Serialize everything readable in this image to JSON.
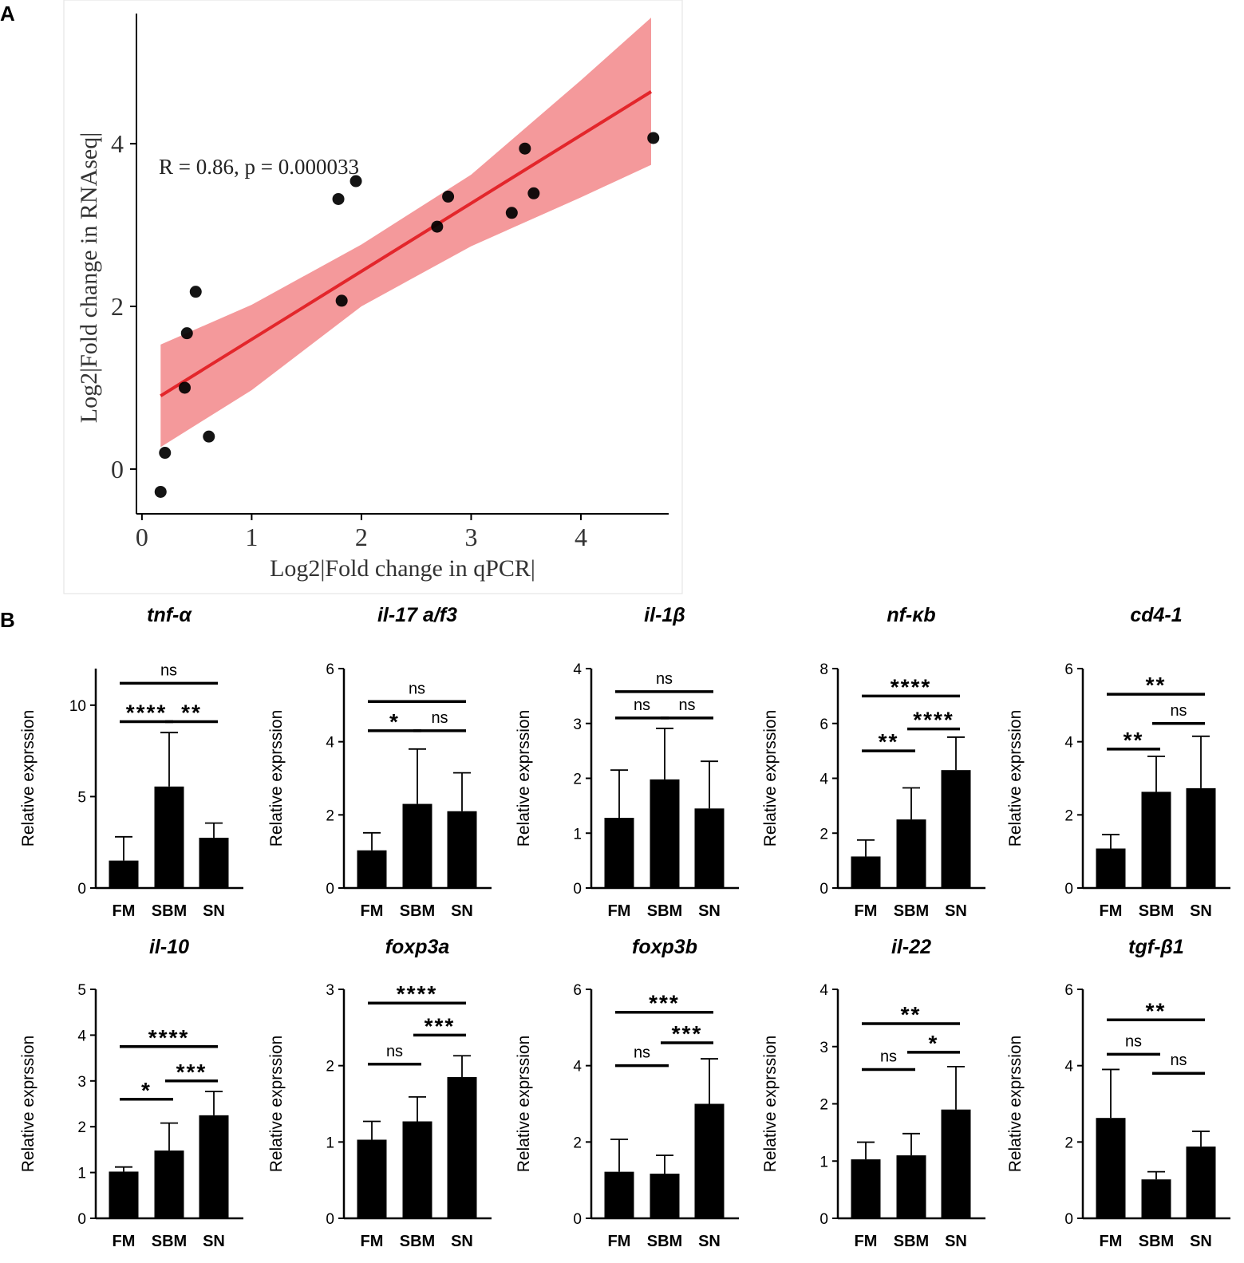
{
  "panels": {
    "a_label": "A",
    "b_label": "B"
  },
  "colors": {
    "band": "#f4999b",
    "line": "#e3262b",
    "point": "#000000",
    "bar": "#000000"
  },
  "chart_data": [
    {
      "type": "scatter",
      "panel": "A",
      "title": "",
      "xlabel": "Log2|Fold change in qPCR|",
      "ylabel": "Log2|Fold change in RNAseq|",
      "annotation": "R = 0.86, p = 0.000033",
      "xlim": [
        -0.05,
        4.8
      ],
      "ylim": [
        -0.55,
        5.6
      ],
      "xticks": [
        "0",
        "1",
        "2",
        "3",
        "4"
      ],
      "yticks": [
        "0",
        "2",
        "4"
      ],
      "points": [
        {
          "x": 0.17,
          "y": -0.28
        },
        {
          "x": 0.21,
          "y": 0.2
        },
        {
          "x": 0.39,
          "y": 1.0
        },
        {
          "x": 0.41,
          "y": 1.67
        },
        {
          "x": 0.49,
          "y": 2.18
        },
        {
          "x": 0.61,
          "y": 0.4
        },
        {
          "x": 1.79,
          "y": 3.32
        },
        {
          "x": 1.82,
          "y": 2.07
        },
        {
          "x": 1.95,
          "y": 3.54
        },
        {
          "x": 2.69,
          "y": 2.98
        },
        {
          "x": 2.79,
          "y": 3.35
        },
        {
          "x": 3.37,
          "y": 3.15
        },
        {
          "x": 3.49,
          "y": 3.94
        },
        {
          "x": 3.57,
          "y": 3.39
        },
        {
          "x": 4.66,
          "y": 4.07
        }
      ],
      "fit": {
        "x": [
          0.17,
          4.64
        ],
        "y": [
          0.9,
          4.64
        ]
      },
      "band": {
        "x": [
          0.17,
          1.0,
          2.0,
          3.0,
          4.0,
          4.64
        ],
        "upper": [
          1.53,
          2.02,
          2.76,
          3.62,
          4.78,
          5.55
        ],
        "lower": [
          0.27,
          0.97,
          2.0,
          2.74,
          3.34,
          3.74
        ]
      }
    },
    {
      "type": "bar",
      "panel": "B",
      "title": "tnf-α",
      "ylabel": "Relative exprssion",
      "categories": [
        "FM",
        "SBM",
        "SN"
      ],
      "values": [
        1.5,
        5.55,
        2.75
      ],
      "errors": [
        1.3,
        2.95,
        0.8
      ],
      "ylim": [
        0,
        12
      ],
      "yticks": [
        "0",
        "5",
        "10"
      ],
      "significance": [
        {
          "from": 0,
          "to": 2,
          "label": "ns",
          "y": 11.2
        },
        {
          "from": 0,
          "to": 1,
          "label": "****",
          "y": 9.1
        },
        {
          "from": 1,
          "to": 2,
          "label": "**",
          "y": 9.1
        }
      ]
    },
    {
      "type": "bar",
      "panel": "B",
      "title": "il-17 a/f3",
      "ylabel": "Relative exprssion",
      "categories": [
        "FM",
        "SBM",
        "SN"
      ],
      "values": [
        1.03,
        2.3,
        2.1
      ],
      "errors": [
        0.48,
        1.5,
        1.05
      ],
      "ylim": [
        0,
        6
      ],
      "yticks": [
        "0",
        "2",
        "4",
        "6"
      ],
      "significance": [
        {
          "from": 0,
          "to": 2,
          "label": "ns",
          "y": 5.1
        },
        {
          "from": 0,
          "to": 1,
          "label": "*",
          "y": 4.3
        },
        {
          "from": 1,
          "to": 2,
          "label": "ns",
          "y": 4.3
        }
      ]
    },
    {
      "type": "bar",
      "panel": "B",
      "title": "il-1β",
      "ylabel": "Relative exprssion",
      "categories": [
        "FM",
        "SBM",
        "SN"
      ],
      "values": [
        1.28,
        1.98,
        1.45
      ],
      "errors": [
        0.87,
        0.93,
        0.86
      ],
      "ylim": [
        0,
        4
      ],
      "yticks": [
        "0",
        "1",
        "2",
        "3",
        "4"
      ],
      "significance": [
        {
          "from": 0,
          "to": 2,
          "label": "ns",
          "y": 3.58
        },
        {
          "from": 0,
          "to": 1,
          "label": "ns",
          "y": 3.1
        },
        {
          "from": 1,
          "to": 2,
          "label": "ns",
          "y": 3.1
        }
      ]
    },
    {
      "type": "bar",
      "panel": "B",
      "title": "nf-κb",
      "ylabel": "Relative exprssion",
      "categories": [
        "FM",
        "SBM",
        "SN"
      ],
      "values": [
        1.15,
        2.5,
        4.3
      ],
      "errors": [
        0.6,
        1.15,
        1.2
      ],
      "ylim": [
        0,
        8
      ],
      "yticks": [
        "0",
        "2",
        "4",
        "6",
        "8"
      ],
      "significance": [
        {
          "from": 0,
          "to": 2,
          "label": "****",
          "y": 7.0
        },
        {
          "from": 0,
          "to": 1,
          "label": "**",
          "y": 5.0
        },
        {
          "from": 1,
          "to": 2,
          "label": "****",
          "y": 5.8
        }
      ]
    },
    {
      "type": "bar",
      "panel": "B",
      "title": "cd4-1",
      "ylabel": "Relative exprssion",
      "categories": [
        "FM",
        "SBM",
        "SN"
      ],
      "values": [
        1.08,
        2.63,
        2.73
      ],
      "errors": [
        0.38,
        0.97,
        1.42
      ],
      "ylim": [
        0,
        6
      ],
      "yticks": [
        "0",
        "2",
        "4",
        "6"
      ],
      "significance": [
        {
          "from": 0,
          "to": 2,
          "label": "**",
          "y": 5.3
        },
        {
          "from": 0,
          "to": 1,
          "label": "**",
          "y": 3.8
        },
        {
          "from": 1,
          "to": 2,
          "label": "ns",
          "y": 4.5
        }
      ]
    },
    {
      "type": "bar",
      "panel": "B",
      "title": "il-10",
      "ylabel": "Relative exprssion",
      "categories": [
        "FM",
        "SBM",
        "SN"
      ],
      "values": [
        1.02,
        1.48,
        2.25
      ],
      "errors": [
        0.1,
        0.6,
        0.52
      ],
      "ylim": [
        0,
        5
      ],
      "yticks": [
        "0",
        "1",
        "2",
        "3",
        "4",
        "5"
      ],
      "significance": [
        {
          "from": 0,
          "to": 2,
          "label": "****",
          "y": 3.75
        },
        {
          "from": 0,
          "to": 1,
          "label": "*",
          "y": 2.6
        },
        {
          "from": 1,
          "to": 2,
          "label": "***",
          "y": 3.0
        }
      ]
    },
    {
      "type": "bar",
      "panel": "B",
      "title": "foxp3a",
      "ylabel": "Relative exprssion",
      "categories": [
        "FM",
        "SBM",
        "SN"
      ],
      "values": [
        1.03,
        1.27,
        1.85
      ],
      "errors": [
        0.24,
        0.32,
        0.28
      ],
      "ylim": [
        0,
        3
      ],
      "yticks": [
        "0",
        "1",
        "2",
        "3"
      ],
      "significance": [
        {
          "from": 0,
          "to": 2,
          "label": "****",
          "y": 2.82
        },
        {
          "from": 0,
          "to": 1,
          "label": "ns",
          "y": 2.02
        },
        {
          "from": 1,
          "to": 2,
          "label": "***",
          "y": 2.4
        }
      ]
    },
    {
      "type": "bar",
      "panel": "B",
      "title": "foxp3b",
      "ylabel": "Relative exprssion",
      "categories": [
        "FM",
        "SBM",
        "SN"
      ],
      "values": [
        1.22,
        1.17,
        3.0
      ],
      "errors": [
        0.85,
        0.48,
        1.18
      ],
      "ylim": [
        0,
        6
      ],
      "yticks": [
        "0",
        "2",
        "4",
        "6"
      ],
      "significance": [
        {
          "from": 0,
          "to": 2,
          "label": "***",
          "y": 5.4
        },
        {
          "from": 0,
          "to": 1,
          "label": "ns",
          "y": 4.0
        },
        {
          "from": 1,
          "to": 2,
          "label": "***",
          "y": 4.6
        }
      ]
    },
    {
      "type": "bar",
      "panel": "B",
      "title": "il-22",
      "ylabel": "Relative exprssion",
      "categories": [
        "FM",
        "SBM",
        "SN"
      ],
      "values": [
        1.03,
        1.1,
        1.9
      ],
      "errors": [
        0.3,
        0.38,
        0.75
      ],
      "ylim": [
        0,
        4
      ],
      "yticks": [
        "0",
        "1",
        "2",
        "3",
        "4"
      ],
      "significance": [
        {
          "from": 0,
          "to": 2,
          "label": "**",
          "y": 3.4
        },
        {
          "from": 0,
          "to": 1,
          "label": "ns",
          "y": 2.6
        },
        {
          "from": 1,
          "to": 2,
          "label": "*",
          "y": 2.9
        }
      ]
    },
    {
      "type": "bar",
      "panel": "B",
      "title": "tgf-β1",
      "ylabel": "Relative exprssion",
      "categories": [
        "FM",
        "SBM",
        "SN"
      ],
      "values": [
        2.63,
        1.02,
        1.88
      ],
      "errors": [
        1.27,
        0.2,
        0.4
      ],
      "ylim": [
        0,
        6
      ],
      "yticks": [
        "0",
        "2",
        "4",
        "6"
      ],
      "significance": [
        {
          "from": 0,
          "to": 2,
          "label": "**",
          "y": 5.2
        },
        {
          "from": 0,
          "to": 1,
          "label": "ns",
          "y": 4.3
        },
        {
          "from": 1,
          "to": 2,
          "label": "ns",
          "y": 3.8
        }
      ]
    }
  ]
}
